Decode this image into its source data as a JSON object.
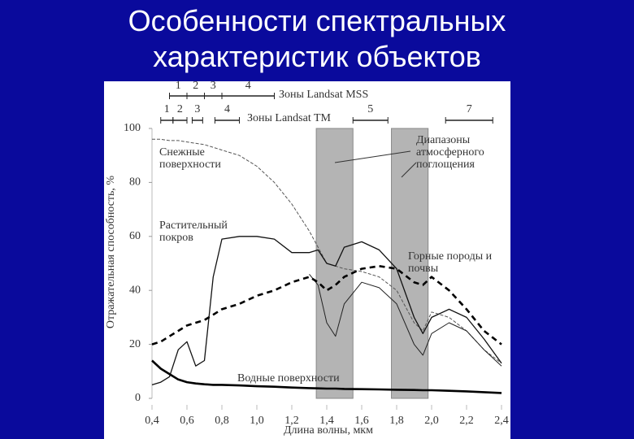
{
  "chart_data": {
    "type": "line",
    "title": "Особенности спектральных характеристик объектов",
    "x_label": "Длина волны, мкм",
    "y_label": "Отражательная способность, %",
    "xlim": [
      0.4,
      2.4
    ],
    "ylim": [
      0,
      100
    ],
    "xticks": [
      {
        "value": 0.4,
        "label": "0,4"
      },
      {
        "value": 0.6,
        "label": "0,6"
      },
      {
        "value": 0.8,
        "label": "0,8"
      },
      {
        "value": 1.0,
        "label": "1,0"
      },
      {
        "value": 1.2,
        "label": "1,2"
      },
      {
        "value": 1.4,
        "label": "1,4"
      },
      {
        "value": 1.6,
        "label": "1,6"
      },
      {
        "value": 1.8,
        "label": "1,8"
      },
      {
        "value": 2.0,
        "label": "2,0"
      },
      {
        "value": 2.2,
        "label": "2,2"
      },
      {
        "value": 2.4,
        "label": "2,4"
      }
    ],
    "yticks": [
      0,
      20,
      40,
      60,
      80,
      100
    ],
    "grid": false,
    "x": [
      0.4,
      0.45,
      0.5,
      0.55,
      0.6,
      0.65,
      0.7,
      0.75,
      0.8,
      0.9,
      1.0,
      1.1,
      1.2,
      1.3,
      1.35,
      1.4,
      1.45,
      1.5,
      1.6,
      1.7,
      1.8,
      1.9,
      1.95,
      2.0,
      2.1,
      2.2,
      2.3,
      2.4
    ],
    "series": [
      {
        "name": "Снежные поверхности",
        "color": "#555555",
        "linestyle": "dashed",
        "linewidth": 1,
        "values": [
          96,
          96,
          95.5,
          95.5,
          95,
          94.5,
          94,
          93,
          92,
          90,
          86,
          80,
          72,
          62,
          56,
          50,
          49,
          48,
          47,
          45,
          40,
          28,
          25,
          32,
          30,
          25,
          18,
          13
        ]
      },
      {
        "name": "Растительный покров",
        "color": "#111111",
        "linestyle": "solid",
        "linewidth": 1.3,
        "values": [
          5,
          6,
          8,
          18,
          21,
          12,
          14,
          45,
          59,
          60,
          60,
          59,
          54,
          54,
          55,
          50,
          49,
          56,
          58,
          55,
          48,
          30,
          24,
          30,
          33,
          30,
          22,
          13
        ]
      },
      {
        "color": "#222222",
        "linestyle": "solid",
        "linewidth": 1,
        "values": [
          null,
          null,
          null,
          null,
          null,
          null,
          null,
          null,
          null,
          null,
          null,
          null,
          null,
          46,
          42,
          28,
          23,
          35,
          43,
          41,
          35,
          20,
          16,
          24,
          28,
          25,
          18,
          12
        ]
      },
      {
        "name": "Горные породы и почвы",
        "color": "#000000",
        "linestyle": "dashed",
        "linewidth": 2.6,
        "values": [
          20,
          21,
          23,
          25,
          27,
          28,
          29,
          31,
          33,
          35,
          38,
          40,
          43,
          45,
          43,
          40,
          42,
          45,
          48,
          49,
          48,
          43,
          42,
          45,
          40,
          33,
          25,
          20
        ]
      },
      {
        "name": "Водные поверхности",
        "color": "#000000",
        "linestyle": "solid",
        "linewidth": 2.6,
        "values": [
          14,
          11,
          9,
          7,
          6,
          5.5,
          5.2,
          5,
          5,
          4.8,
          4.5,
          4.3,
          4,
          3.8,
          3.7,
          3.6,
          3.6,
          3.5,
          3.4,
          3.3,
          3.2,
          3.1,
          3,
          3,
          2.8,
          2.6,
          2.3,
          2
        ]
      }
    ],
    "bands": [
      [
        1.34,
        1.55
      ],
      [
        1.77,
        1.98
      ]
    ],
    "bands_label": "Диапазоны атмосферного поглощения",
    "mss_label": "Зоны Landsat MSS",
    "tm_label": "Зоны Landsat TM",
    "landsat_mss": [
      {
        "zone": 1,
        "from": 0.5,
        "to": 0.6
      },
      {
        "zone": 2,
        "from": 0.6,
        "to": 0.7
      },
      {
        "zone": 3,
        "from": 0.7,
        "to": 0.8
      },
      {
        "zone": 4,
        "from": 0.8,
        "to": 1.1
      }
    ],
    "landsat_tm": [
      {
        "zone": 1,
        "from": 0.45,
        "to": 0.52
      },
      {
        "zone": 2,
        "from": 0.52,
        "to": 0.6
      },
      {
        "zone": 3,
        "from": 0.63,
        "to": 0.69
      },
      {
        "zone": 4,
        "from": 0.76,
        "to": 0.9
      },
      {
        "zone": 5,
        "from": 1.55,
        "to": 1.75
      },
      {
        "zone": 7,
        "from": 2.08,
        "to": 2.35
      }
    ]
  }
}
